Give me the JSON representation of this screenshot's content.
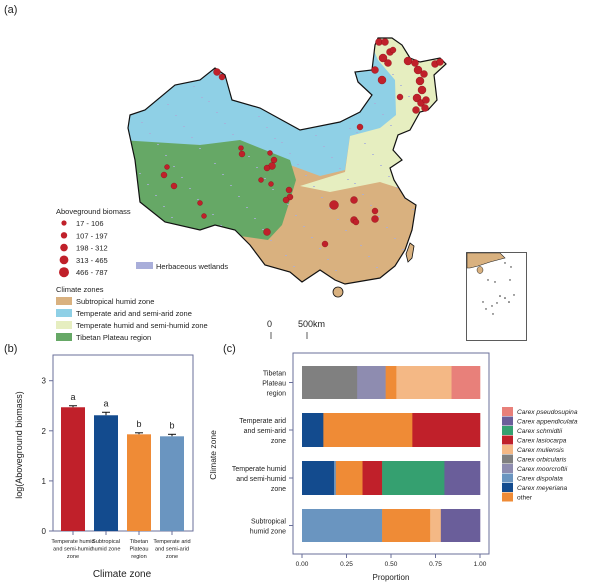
{
  "panel_labels": {
    "a": "(a)",
    "b": "(b)",
    "c": "(c)"
  },
  "map": {
    "biomass_legend_title": "Aboveground biomass",
    "biomass_classes": [
      "17 - 106",
      "107 - 197",
      "198 - 312",
      "313 - 465",
      "466 - 787"
    ],
    "wetlands_label": "Herbaceous wetlands",
    "climate_legend_title": "Climate zones",
    "climate_zones": [
      {
        "label": "Subtropical humid zone",
        "color": "#D9B17F"
      },
      {
        "label": "Temperate arid and semi-arid zone",
        "color": "#8FD0E6"
      },
      {
        "label": "Temperate humid and semi-humid zone",
        "color": "#E6EEC0"
      },
      {
        "label": "Tibetan Plateau region",
        "color": "#66A866"
      }
    ],
    "wetlands_color": "#A9AEDA",
    "site_color": "#C0202A",
    "scale_labels": [
      "0",
      "500km"
    ]
  },
  "chart_data": [
    {
      "type": "bar",
      "xlabel": "Climate zone",
      "ylabel": "log(Aboveground biomass)",
      "ylim": [
        0,
        3.5
      ],
      "yticks": [
        "0",
        "1",
        "2",
        "3"
      ],
      "categories": [
        "Temperate humid and semi-humid zone",
        "Subtropical humid zone",
        "Tibetan Plateau region",
        "Temperate arid and semi-arid zone"
      ],
      "category_lines": [
        [
          "Temperate humid",
          "and semi-humid",
          "zone"
        ],
        [
          "Subtropical",
          "humid zone"
        ],
        [
          "Tibetan",
          "Plateau",
          "region"
        ],
        [
          "Temperate arid",
          "and semi-arid",
          "zone"
        ]
      ],
      "values": [
        2.47,
        2.31,
        1.93,
        1.89
      ],
      "errors": [
        0.03,
        0.06,
        0.03,
        0.04
      ],
      "letters": [
        "a",
        "a",
        "b",
        "b"
      ],
      "colors": [
        "#C0202A",
        "#134B8E",
        "#EF8B36",
        "#6A95C0"
      ]
    },
    {
      "type": "bar",
      "orientation": "horizontal-stacked",
      "xlabel": "Proportion",
      "ylabel": "Climate zone",
      "xlim": [
        0,
        1
      ],
      "xticks": [
        "0.00",
        "0.25",
        "0.50",
        "0.75",
        "1.00"
      ],
      "categories": [
        "Tibetan Plateau region",
        "Temperate arid and semi-arid zone",
        "Temperate humid and semi-humid zone",
        "Subtropical humid zone"
      ],
      "category_lines": [
        [
          "Tibetan",
          "Plateau",
          "region"
        ],
        [
          "Temperate arid",
          "and semi-arid",
          "zone"
        ],
        [
          "Temperate humid",
          "and semi-humid",
          "zone"
        ],
        [
          "Subtropical",
          "humid zone"
        ]
      ],
      "legend": "right",
      "series": [
        {
          "name": "Carex pseudosupina",
          "color": "#E8807A",
          "values": [
            0.16,
            0,
            0,
            0
          ]
        },
        {
          "name": "Carex appendiculata",
          "color": "#6A5E9A",
          "values": [
            0,
            0,
            0.2,
            0.22
          ]
        },
        {
          "name": "Carex schmidtii",
          "color": "#35A070",
          "values": [
            0,
            0,
            0.35,
            0
          ]
        },
        {
          "name": "Carex lasiocarpa",
          "color": "#C0202A",
          "values": [
            0,
            0.38,
            0.11,
            0
          ]
        },
        {
          "name": "Carex muliensis",
          "color": "#F4B885",
          "values": [
            0.31,
            0,
            0,
            0.06
          ]
        },
        {
          "name": "Carex orbicularis",
          "color": "#808080",
          "values": [
            0.31,
            0,
            0,
            0
          ]
        },
        {
          "name": "Carex moorcroftii",
          "color": "#8E8CB0",
          "values": [
            0.16,
            0,
            0,
            0
          ]
        },
        {
          "name": "Carex dispolata",
          "color": "#6A95C0",
          "values": [
            0,
            0,
            0.01,
            0.45
          ]
        },
        {
          "name": "Carex meyeriana",
          "color": "#134B8E",
          "values": [
            0,
            0.12,
            0.18,
            0
          ]
        },
        {
          "name": "other",
          "color": "#EF8B36",
          "values": [
            0.06,
            0.5,
            0.15,
            0.27
          ]
        }
      ],
      "stack_order": [
        [
          "Carex orbicularis",
          "Carex moorcroftii",
          "other",
          "Carex muliensis",
          "Carex pseudosupina"
        ],
        [
          "Carex meyeriana",
          "other",
          "Carex lasiocarpa"
        ],
        [
          "Carex meyeriana",
          "Carex dispolata",
          "other",
          "Carex lasiocarpa",
          "Carex schmidtii",
          "Carex appendiculata"
        ],
        [
          "Carex dispolata",
          "other",
          "Carex muliensis",
          "Carex appendiculata"
        ]
      ]
    }
  ]
}
